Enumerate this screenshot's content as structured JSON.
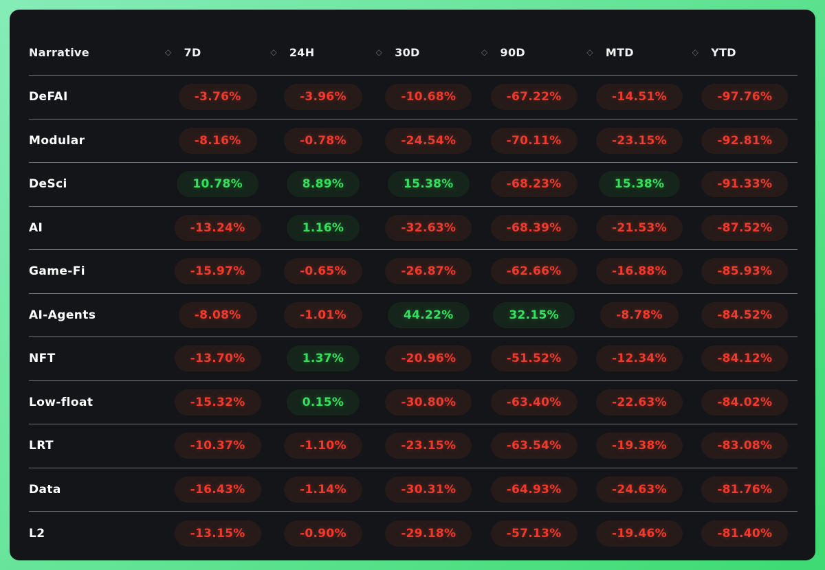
{
  "theme": {
    "background_gradient_start": "#85ecb7",
    "background_gradient_end": "#3eda72",
    "card_background": "#131518",
    "divider_color": "rgba(200, 205, 210, 0.55)",
    "header_text_color": "#f2f2f2",
    "row_label_color": "#ffffff",
    "sort_icon_color": "#6d7278",
    "positive_color": "#32e15c",
    "negative_color": "#f03a2d",
    "positive_pill_background": "#16251b",
    "negative_pill_background": "#261b19",
    "sort_icon": "◇"
  },
  "table": {
    "columns": [
      {
        "label": "Narrative"
      },
      {
        "label": "7D"
      },
      {
        "label": "24H"
      },
      {
        "label": "30D"
      },
      {
        "label": "90D"
      },
      {
        "label": "MTD"
      },
      {
        "label": "YTD"
      }
    ],
    "rows": [
      {
        "narrative": "DeFAI",
        "values": [
          "-3.76%",
          "-3.96%",
          "-10.68%",
          "-67.22%",
          "-14.51%",
          "-97.76%"
        ]
      },
      {
        "narrative": "Modular",
        "values": [
          "-8.16%",
          "-0.78%",
          "-24.54%",
          "-70.11%",
          "-23.15%",
          "-92.81%"
        ]
      },
      {
        "narrative": "DeSci",
        "values": [
          "10.78%",
          "8.89%",
          "15.38%",
          "-68.23%",
          "15.38%",
          "-91.33%"
        ]
      },
      {
        "narrative": "AI",
        "values": [
          "-13.24%",
          "1.16%",
          "-32.63%",
          "-68.39%",
          "-21.53%",
          "-87.52%"
        ]
      },
      {
        "narrative": "Game-Fi",
        "values": [
          "-15.97%",
          "-0.65%",
          "-26.87%",
          "-62.66%",
          "-16.88%",
          "-85.93%"
        ]
      },
      {
        "narrative": "AI-Agents",
        "values": [
          "-8.08%",
          "-1.01%",
          "44.22%",
          "32.15%",
          "-8.78%",
          "-84.52%"
        ]
      },
      {
        "narrative": "NFT",
        "values": [
          "-13.70%",
          "1.37%",
          "-20.96%",
          "-51.52%",
          "-12.34%",
          "-84.12%"
        ]
      },
      {
        "narrative": "Low-float",
        "values": [
          "-15.32%",
          "0.15%",
          "-30.80%",
          "-63.40%",
          "-22.63%",
          "-84.02%"
        ]
      },
      {
        "narrative": "LRT",
        "values": [
          "-10.37%",
          "-1.10%",
          "-23.15%",
          "-63.54%",
          "-19.38%",
          "-83.08%"
        ]
      },
      {
        "narrative": "Data",
        "values": [
          "-16.43%",
          "-1.14%",
          "-30.31%",
          "-64.93%",
          "-24.63%",
          "-81.76%"
        ]
      },
      {
        "narrative": "L2",
        "values": [
          "-13.15%",
          "-0.90%",
          "-29.18%",
          "-57.13%",
          "-19.46%",
          "-81.40%"
        ]
      }
    ]
  }
}
